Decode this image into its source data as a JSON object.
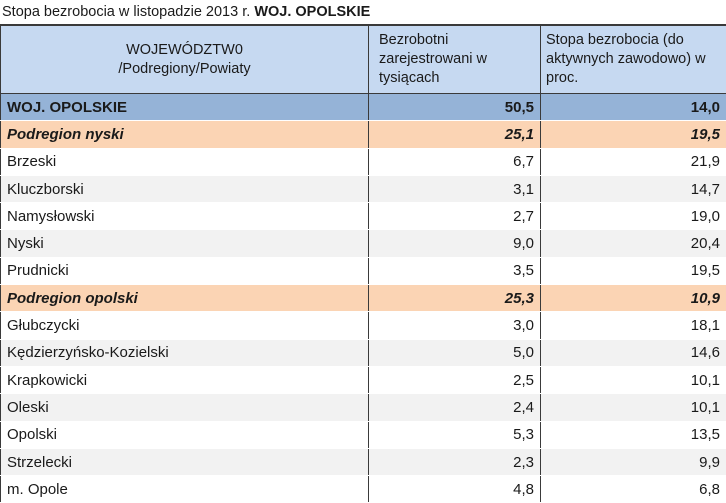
{
  "title": {
    "prefix": "Stopa bezrobocia w listopadzie 2013 r.",
    "bold": "WOJ. OPOLSKIE"
  },
  "headers": {
    "region_line1": "WOJEWÓDZTW0",
    "region_line2": "/Podregiony/Powiaty",
    "unemployed": "Bezrobotni zarejestrowani w tysiącach",
    "rate": "Stopa bezrobocia (do aktywnych zawodowo) w proc."
  },
  "rows": [
    {
      "name": "WOJ. OPOLSKIE",
      "unemployed": "50,5",
      "rate": "14,0",
      "kind": "province"
    },
    {
      "name": "Podregion nyski",
      "unemployed": "25,1",
      "rate": "19,5",
      "kind": "subregion"
    },
    {
      "name": "Brzeski",
      "unemployed": "6,7",
      "rate": "21,9",
      "kind": "white"
    },
    {
      "name": "Kluczborski",
      "unemployed": "3,1",
      "rate": "14,7",
      "kind": "alt"
    },
    {
      "name": "Namysłowski",
      "unemployed": "2,7",
      "rate": "19,0",
      "kind": "white"
    },
    {
      "name": "Nyski",
      "unemployed": "9,0",
      "rate": "20,4",
      "kind": "alt"
    },
    {
      "name": "Prudnicki",
      "unemployed": "3,5",
      "rate": "19,5",
      "kind": "white"
    },
    {
      "name": "Podregion opolski",
      "unemployed": "25,3",
      "rate": "10,9",
      "kind": "subregion"
    },
    {
      "name": "Głubczycki",
      "unemployed": "3,0",
      "rate": "18,1",
      "kind": "white"
    },
    {
      "name": "Kędzierzyńsko-Kozielski",
      "unemployed": "5,0",
      "rate": "14,6",
      "kind": "alt"
    },
    {
      "name": "Krapkowicki",
      "unemployed": "2,5",
      "rate": "10,1",
      "kind": "white"
    },
    {
      "name": "Oleski",
      "unemployed": "2,4",
      "rate": "10,1",
      "kind": "alt"
    },
    {
      "name": "Opolski",
      "unemployed": "5,3",
      "rate": "13,5",
      "kind": "white"
    },
    {
      "name": "Strzelecki",
      "unemployed": "2,3",
      "rate": "9,9",
      "kind": "alt"
    },
    {
      "name": "m. Opole",
      "unemployed": "4,8",
      "rate": "6,8",
      "kind": "white"
    }
  ]
}
